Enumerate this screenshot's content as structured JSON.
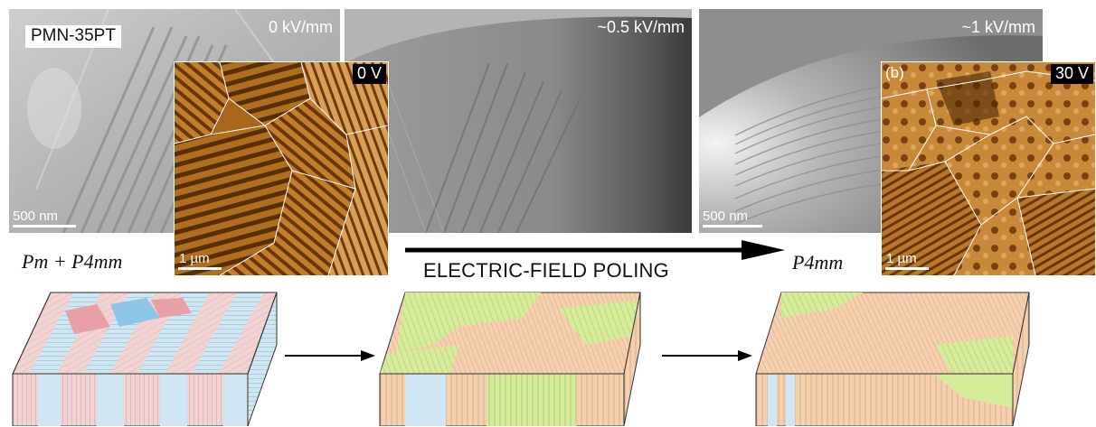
{
  "tem_panels": [
    {
      "field": "0 kV/mm",
      "sample": "PMN-35PT",
      "scale": "500 nm"
    },
    {
      "field": "~0.5 kV/mm"
    },
    {
      "field": "~1 kV/mm",
      "scale": "500 nm"
    }
  ],
  "afm_panels": [
    {
      "voltage": "0 V",
      "tag": "",
      "scale": "1 µm"
    },
    {
      "voltage": "30 V",
      "tag": "(b)",
      "scale": "1 µm"
    }
  ],
  "phases": {
    "before": "Pm + P4mm",
    "after": "P4mm"
  },
  "process": {
    "label": "ELECTRIC-FIELD POLING"
  },
  "colors": {
    "pink_domain": "#f1d3d3",
    "blue_domain": "#cfe7f3",
    "green_domain": "#d7ec9a",
    "peach_domain": "#f6cfae",
    "afm_dark": "#5a2e05",
    "afm_light": "#e8b060",
    "arrow": "#000000"
  }
}
